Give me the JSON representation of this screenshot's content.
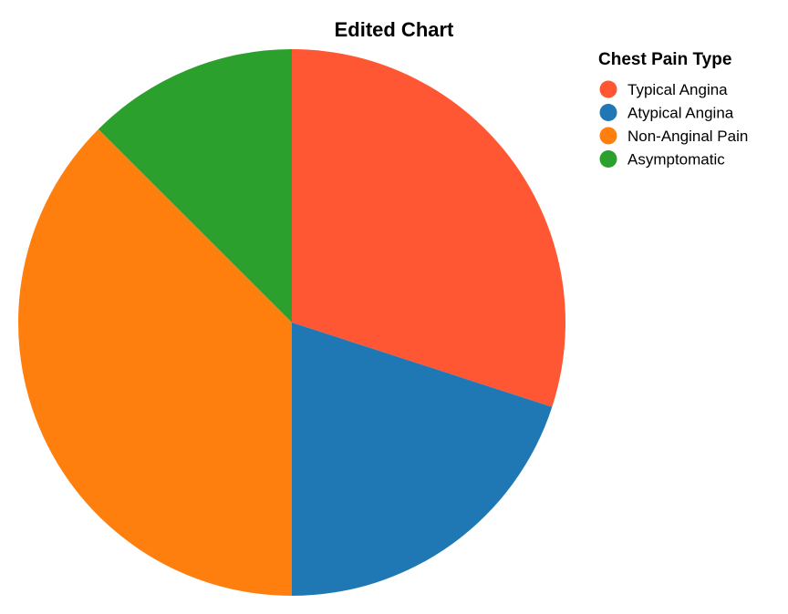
{
  "chart_data": {
    "type": "pie",
    "title": "Edited Chart",
    "legend": {
      "title": "Chest Pain Type",
      "placement": "top-right"
    },
    "categories": [
      "Typical Angina",
      "Atypical Angina",
      "Non-Anginal Pain",
      "Asymptomatic"
    ],
    "values": [
      30.0,
      20.0,
      37.5,
      12.5
    ],
    "colors": [
      "#ff5733",
      "#1f77b4",
      "#ff7f0e",
      "#2ca02c"
    ],
    "start_angle_deg": 0,
    "direction": "clockwise"
  }
}
